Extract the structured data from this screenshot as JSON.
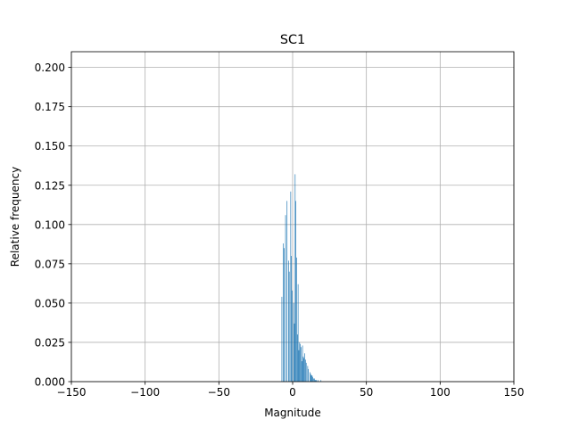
{
  "chart_data": {
    "type": "bar",
    "title": "SC1",
    "xlabel": "Magnitude",
    "ylabel": "Relative frequency",
    "xlim": [
      -150,
      150
    ],
    "ylim": [
      0,
      0.21
    ],
    "xticks": [
      -150,
      -100,
      -50,
      0,
      50,
      100,
      150
    ],
    "xtick_labels": [
      "−150",
      "−100",
      "−50",
      "0",
      "50",
      "100",
      "150"
    ],
    "yticks": [
      0,
      0.025,
      0.05,
      0.075,
      0.1,
      0.125,
      0.15,
      0.175,
      0.2
    ],
    "ytick_labels": [
      "0.000",
      "0.025",
      "0.050",
      "0.075",
      "0.100",
      "0.125",
      "0.150",
      "0.175",
      "0.200"
    ],
    "grid": true,
    "bar_color": "#1f77b4",
    "bin_width": 0.5,
    "x": [
      -7.5,
      -7.0,
      -6.5,
      -6.0,
      -5.5,
      -5.0,
      -4.5,
      -4.0,
      -3.5,
      -3.0,
      -2.5,
      -2.0,
      -1.5,
      -1.0,
      -0.5,
      0.0,
      0.5,
      1.0,
      1.5,
      2.0,
      2.5,
      3.0,
      3.5,
      4.0,
      4.5,
      5.0,
      5.5,
      6.0,
      6.5,
      7.0,
      7.5,
      8.0,
      8.5,
      9.0,
      9.5,
      10.0,
      10.5,
      11.0,
      11.5,
      12.0,
      12.5,
      13.0,
      13.5,
      14.0,
      14.5,
      15.0,
      15.5,
      16.0,
      16.5,
      17.0,
      17.5,
      18.0,
      18.5,
      19.0
    ],
    "values": [
      0.054,
      0.0,
      0.088,
      0.085,
      0.0,
      0.106,
      0.0,
      0.115,
      0.0,
      0.077,
      0.07,
      0.0,
      0.121,
      0.08,
      0.058,
      0.0,
      0.05,
      0.037,
      0.132,
      0.115,
      0.079,
      0.03,
      0.062,
      0.02,
      0.025,
      0.024,
      0.022,
      0.013,
      0.023,
      0.016,
      0.015,
      0.018,
      0.014,
      0.012,
      0.0,
      0.01,
      0.008,
      0.0,
      0.006,
      0.005,
      0.004,
      0.004,
      0.003,
      0.002,
      0.002,
      0.001,
      0.001,
      0.001,
      0.0,
      0.001,
      0.0,
      0.0,
      0.0,
      0.001
    ]
  }
}
